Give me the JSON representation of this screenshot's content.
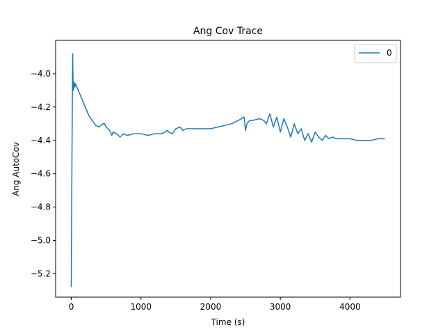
{
  "chart_data": {
    "type": "line",
    "title": "Ang Cov Trace",
    "xlabel": "Time (s)",
    "ylabel": "Ang AutoCov",
    "xlim": [
      -225,
      4725
    ],
    "ylim": [
      -5.34,
      -3.8
    ],
    "xticks": [
      0,
      1000,
      2000,
      3000,
      4000
    ],
    "xtick_labels": [
      "0",
      "1000",
      "2000",
      "3000",
      "4000"
    ],
    "yticks": [
      -5.2,
      -5.0,
      -4.8,
      -4.6,
      -4.4,
      -4.2,
      -4.0
    ],
    "ytick_labels": [
      "−5.2",
      "−5.0",
      "−4.8",
      "−4.6",
      "−4.4",
      "−4.2",
      "−4.0"
    ],
    "grid": false,
    "legend_position": "top-right",
    "series": [
      {
        "name": "0",
        "color": "#1f77b4",
        "x": [
          0,
          10,
          20,
          25,
          30,
          40,
          50,
          60,
          80,
          100,
          150,
          200,
          250,
          300,
          350,
          400,
          450,
          480,
          500,
          550,
          580,
          600,
          650,
          700,
          750,
          800,
          900,
          1000,
          1100,
          1200,
          1300,
          1380,
          1400,
          1450,
          1500,
          1560,
          1600,
          1650,
          1700,
          1800,
          1900,
          2000,
          2100,
          2200,
          2300,
          2400,
          2480,
          2500,
          2520,
          2560,
          2600,
          2700,
          2760,
          2800,
          2850,
          2900,
          2950,
          3000,
          3050,
          3100,
          3150,
          3200,
          3250,
          3300,
          3350,
          3400,
          3450,
          3500,
          3550,
          3600,
          3650,
          3700,
          3750,
          3800,
          3900,
          4000,
          4100,
          4200,
          4300,
          4400,
          4500
        ],
        "y": [
          -5.28,
          -4.5,
          -3.88,
          -4.05,
          -4.1,
          -4.05,
          -4.08,
          -4.06,
          -4.08,
          -4.1,
          -4.15,
          -4.2,
          -4.25,
          -4.28,
          -4.31,
          -4.32,
          -4.3,
          -4.3,
          -4.32,
          -4.34,
          -4.37,
          -4.35,
          -4.36,
          -4.38,
          -4.36,
          -4.37,
          -4.36,
          -4.36,
          -4.37,
          -4.36,
          -4.36,
          -4.34,
          -4.35,
          -4.36,
          -4.33,
          -4.32,
          -4.34,
          -4.33,
          -4.33,
          -4.33,
          -4.33,
          -4.33,
          -4.32,
          -4.31,
          -4.3,
          -4.28,
          -4.26,
          -4.34,
          -4.3,
          -4.28,
          -4.28,
          -4.27,
          -4.28,
          -4.3,
          -4.24,
          -4.32,
          -4.26,
          -4.35,
          -4.27,
          -4.32,
          -4.38,
          -4.3,
          -4.36,
          -4.33,
          -4.4,
          -4.36,
          -4.41,
          -4.35,
          -4.38,
          -4.4,
          -4.37,
          -4.39,
          -4.38,
          -4.39,
          -4.39,
          -4.39,
          -4.4,
          -4.4,
          -4.4,
          -4.39,
          -4.39
        ]
      }
    ]
  }
}
